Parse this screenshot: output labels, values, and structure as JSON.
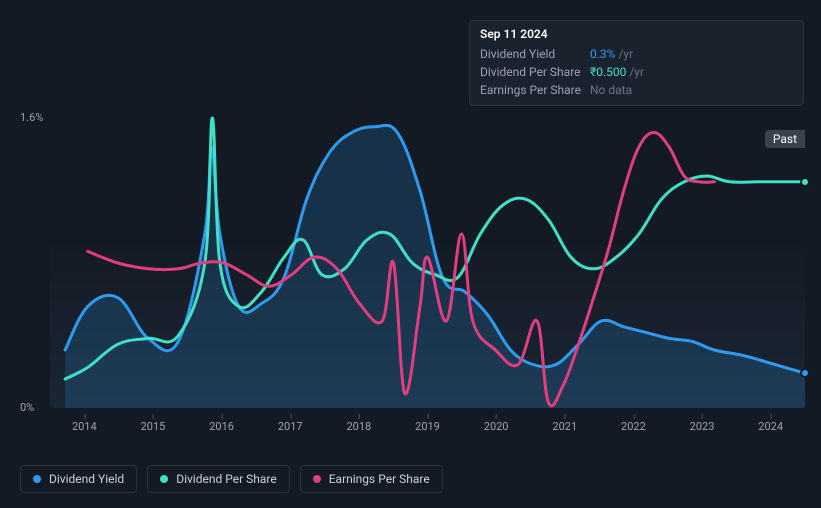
{
  "tooltip": {
    "date": "Sep 11 2024",
    "rows": [
      {
        "label": "Dividend Yield",
        "value": "0.3%",
        "suffix": "/yr",
        "color": "blue"
      },
      {
        "label": "Dividend Per Share",
        "value": "₹0.500",
        "suffix": "/yr",
        "color": "teal"
      },
      {
        "label": "Earnings Per Share",
        "value": "No data",
        "nodata": true
      }
    ]
  },
  "chart": {
    "type": "line",
    "background_color": "#131a24",
    "plot_bg_gradient_top": "#131a24",
    "plot_bg_gradient_bottom": "#1b2634",
    "yaxis": {
      "ticks": [
        {
          "label": "1.6%",
          "frac": 0
        },
        {
          "label": "0%",
          "frac": 1
        }
      ],
      "label_color": "#9aa4b0",
      "label_fontsize": 11
    },
    "xaxis": {
      "ticks": [
        "2014",
        "2015",
        "2016",
        "2017",
        "2018",
        "2019",
        "2020",
        "2021",
        "2022",
        "2023",
        "2024"
      ],
      "label_color": "#9aa4b0",
      "label_fontsize": 11,
      "tick_color": "#4a5260"
    },
    "series": [
      {
        "name": "Dividend Yield",
        "color": "#2e9bf0",
        "line_width": 3,
        "area_fill": "rgba(46,155,240,0.18)",
        "end_dot": true,
        "end_dot_y": 0.88,
        "points": [
          [
            0.02,
            0.8
          ],
          [
            0.05,
            0.65
          ],
          [
            0.09,
            0.62
          ],
          [
            0.13,
            0.76
          ],
          [
            0.17,
            0.77
          ],
          [
            0.205,
            0.4
          ],
          [
            0.214,
            0.1
          ],
          [
            0.225,
            0.4
          ],
          [
            0.25,
            0.65
          ],
          [
            0.28,
            0.64
          ],
          [
            0.31,
            0.55
          ],
          [
            0.34,
            0.28
          ],
          [
            0.37,
            0.12
          ],
          [
            0.4,
            0.05
          ],
          [
            0.43,
            0.03
          ],
          [
            0.46,
            0.05
          ],
          [
            0.49,
            0.25
          ],
          [
            0.52,
            0.55
          ],
          [
            0.55,
            0.6
          ],
          [
            0.58,
            0.68
          ],
          [
            0.61,
            0.8
          ],
          [
            0.64,
            0.85
          ],
          [
            0.67,
            0.85
          ],
          [
            0.7,
            0.78
          ],
          [
            0.73,
            0.7
          ],
          [
            0.76,
            0.72
          ],
          [
            0.79,
            0.74
          ],
          [
            0.82,
            0.76
          ],
          [
            0.85,
            0.77
          ],
          [
            0.88,
            0.8
          ],
          [
            0.92,
            0.82
          ],
          [
            0.96,
            0.85
          ],
          [
            1.0,
            0.88
          ]
        ]
      },
      {
        "name": "Dividend Per Share",
        "color": "#3fe0c5",
        "line_width": 3,
        "area_fill": "none",
        "end_dot": true,
        "end_dot_y": 0.22,
        "points": [
          [
            0.02,
            0.9
          ],
          [
            0.05,
            0.86
          ],
          [
            0.09,
            0.78
          ],
          [
            0.13,
            0.76
          ],
          [
            0.17,
            0.75
          ],
          [
            0.205,
            0.5
          ],
          [
            0.215,
            0.0
          ],
          [
            0.225,
            0.5
          ],
          [
            0.25,
            0.65
          ],
          [
            0.28,
            0.6
          ],
          [
            0.31,
            0.48
          ],
          [
            0.335,
            0.42
          ],
          [
            0.36,
            0.54
          ],
          [
            0.39,
            0.52
          ],
          [
            0.42,
            0.42
          ],
          [
            0.45,
            0.4
          ],
          [
            0.48,
            0.5
          ],
          [
            0.51,
            0.54
          ],
          [
            0.54,
            0.55
          ],
          [
            0.57,
            0.4
          ],
          [
            0.6,
            0.3
          ],
          [
            0.63,
            0.28
          ],
          [
            0.66,
            0.35
          ],
          [
            0.69,
            0.48
          ],
          [
            0.72,
            0.52
          ],
          [
            0.75,
            0.48
          ],
          [
            0.78,
            0.4
          ],
          [
            0.81,
            0.28
          ],
          [
            0.84,
            0.22
          ],
          [
            0.87,
            0.2
          ],
          [
            0.9,
            0.22
          ],
          [
            0.94,
            0.22
          ],
          [
            1.0,
            0.22
          ]
        ]
      },
      {
        "name": "Earnings Per Share",
        "color": "#e23d80",
        "line_width": 3,
        "area_fill": "none",
        "end_dot": false,
        "points": [
          [
            0.05,
            0.46
          ],
          [
            0.09,
            0.5
          ],
          [
            0.13,
            0.52
          ],
          [
            0.17,
            0.52
          ],
          [
            0.2,
            0.5
          ],
          [
            0.23,
            0.5
          ],
          [
            0.26,
            0.54
          ],
          [
            0.29,
            0.58
          ],
          [
            0.32,
            0.54
          ],
          [
            0.35,
            0.48
          ],
          [
            0.38,
            0.52
          ],
          [
            0.41,
            0.64
          ],
          [
            0.44,
            0.7
          ],
          [
            0.455,
            0.5
          ],
          [
            0.47,
            0.95
          ],
          [
            0.49,
            0.65
          ],
          [
            0.5,
            0.48
          ],
          [
            0.525,
            0.7
          ],
          [
            0.545,
            0.4
          ],
          [
            0.56,
            0.7
          ],
          [
            0.59,
            0.8
          ],
          [
            0.62,
            0.85
          ],
          [
            0.645,
            0.7
          ],
          [
            0.66,
            0.98
          ],
          [
            0.68,
            0.92
          ],
          [
            0.7,
            0.78
          ],
          [
            0.72,
            0.62
          ],
          [
            0.74,
            0.45
          ],
          [
            0.76,
            0.25
          ],
          [
            0.78,
            0.1
          ],
          [
            0.8,
            0.05
          ],
          [
            0.82,
            0.1
          ],
          [
            0.84,
            0.2
          ],
          [
            0.86,
            0.22
          ],
          [
            0.88,
            0.22
          ]
        ]
      }
    ],
    "past_label": "Past"
  },
  "legend": {
    "items": [
      {
        "label": "Dividend Yield",
        "color": "#2e9bf0"
      },
      {
        "label": "Dividend Per Share",
        "color": "#3fe0c5"
      },
      {
        "label": "Earnings Per Share",
        "color": "#e23d80"
      }
    ]
  }
}
